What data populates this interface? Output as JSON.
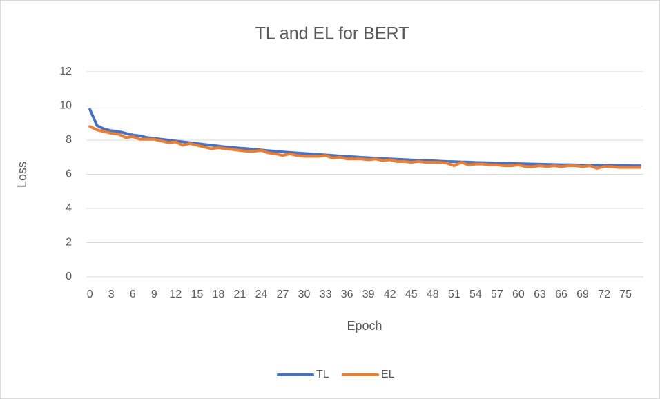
{
  "chart_data": {
    "type": "line",
    "title": "TL and EL for BERT",
    "x_label": "Epoch",
    "y_label": "Loss",
    "categories": [
      0,
      null,
      null,
      3,
      null,
      null,
      6,
      null,
      null,
      9,
      null,
      null,
      12,
      null,
      null,
      15,
      null,
      null,
      18,
      null,
      null,
      21,
      null,
      null,
      24,
      null,
      null,
      27,
      null,
      null,
      30,
      null,
      null,
      33,
      null,
      null,
      36,
      null,
      null,
      39,
      null,
      null,
      42,
      null,
      null,
      45,
      null,
      null,
      48,
      null,
      null,
      51,
      null,
      null,
      54,
      null,
      null,
      57,
      null,
      null,
      60,
      null,
      null,
      63,
      null,
      null,
      66,
      null,
      null,
      69,
      null,
      null,
      72,
      null,
      null,
      75,
      null,
      null
    ],
    "series": [
      {
        "name": "TL",
        "color": "#4472c4",
        "values": [
          9.8,
          8.85,
          8.65,
          8.55,
          8.5,
          8.4,
          8.3,
          8.25,
          8.15,
          8.1,
          8.05,
          8.0,
          7.95,
          7.9,
          7.85,
          7.8,
          7.75,
          7.7,
          7.65,
          7.6,
          7.57,
          7.53,
          7.5,
          7.46,
          7.42,
          7.38,
          7.35,
          7.31,
          7.28,
          7.25,
          7.22,
          7.19,
          7.16,
          7.13,
          7.1,
          7.07,
          7.04,
          7.02,
          6.99,
          6.97,
          6.94,
          6.92,
          6.9,
          6.88,
          6.86,
          6.84,
          6.82,
          6.8,
          6.79,
          6.77,
          6.75,
          6.74,
          6.72,
          6.71,
          6.69,
          6.68,
          6.67,
          6.65,
          6.64,
          6.63,
          6.62,
          6.61,
          6.6,
          6.59,
          6.58,
          6.57,
          6.56,
          6.56,
          6.55,
          6.54,
          6.54,
          6.53,
          6.52,
          6.52,
          6.51,
          6.51,
          6.5,
          6.5
        ]
      },
      {
        "name": "EL",
        "color": "#ed7d31",
        "values": [
          8.8,
          8.6,
          8.5,
          8.4,
          8.35,
          8.15,
          8.2,
          8.05,
          8.05,
          8.05,
          7.95,
          7.85,
          7.9,
          7.7,
          7.8,
          7.7,
          7.6,
          7.5,
          7.55,
          7.5,
          7.45,
          7.4,
          7.35,
          7.35,
          7.4,
          7.25,
          7.2,
          7.1,
          7.2,
          7.1,
          7.05,
          7.05,
          7.05,
          7.1,
          6.95,
          7.0,
          6.9,
          6.9,
          6.9,
          6.85,
          6.9,
          6.8,
          6.85,
          6.75,
          6.75,
          6.7,
          6.75,
          6.7,
          6.7,
          6.7,
          6.65,
          6.5,
          6.7,
          6.55,
          6.6,
          6.6,
          6.55,
          6.55,
          6.5,
          6.5,
          6.55,
          6.45,
          6.45,
          6.5,
          6.45,
          6.5,
          6.45,
          6.5,
          6.5,
          6.45,
          6.5,
          6.35,
          6.45,
          6.45,
          6.4,
          6.4,
          6.4,
          6.4
        ]
      }
    ],
    "ylim": [
      0,
      12
    ],
    "yticks": [
      0,
      2,
      4,
      6,
      8,
      10,
      12
    ],
    "grid": true,
    "legend": "bottom"
  }
}
